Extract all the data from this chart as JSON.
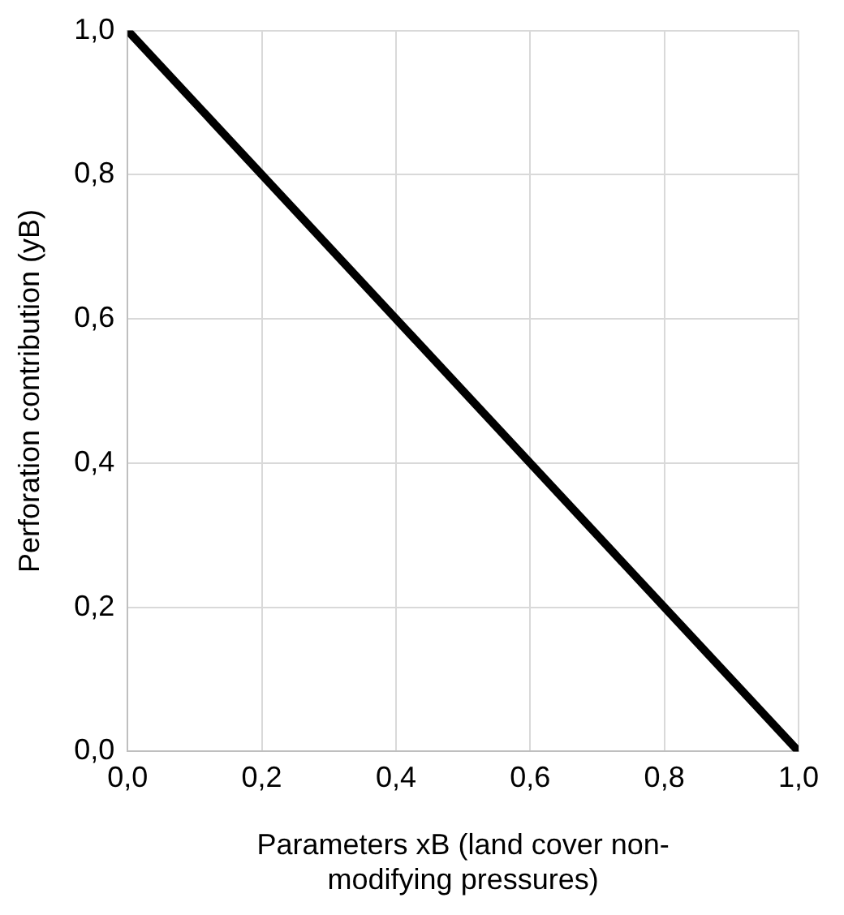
{
  "chart_data": {
    "type": "line",
    "xlabel": "Parameters xB (land cover non-modifying pressures)",
    "ylabel": "Perforation contribution (yB)",
    "x": [
      0,
      1
    ],
    "series": [
      {
        "color": "#000000",
        "values": [
          1,
          0
        ]
      }
    ],
    "xlim": [
      0,
      1
    ],
    "ylim": [
      0,
      1
    ],
    "xticks": [
      {
        "value": 0,
        "label": "0,0"
      },
      {
        "value": 0.2,
        "label": "0,2"
      },
      {
        "value": 0.4,
        "label": "0,4"
      },
      {
        "value": 0.6,
        "label": "0,6"
      },
      {
        "value": 0.8,
        "label": "0,8"
      },
      {
        "value": 1,
        "label": "1,0"
      }
    ],
    "yticks": [
      {
        "value": 0,
        "label": "0,0"
      },
      {
        "value": 0.2,
        "label": "0,2"
      },
      {
        "value": 0.4,
        "label": "0,4"
      },
      {
        "value": 0.6,
        "label": "0,6"
      },
      {
        "value": 0.8,
        "label": "0,8"
      },
      {
        "value": 1,
        "label": "1,0"
      }
    ],
    "grid": true,
    "legend": false,
    "marker": "none",
    "line_style": "solid"
  }
}
